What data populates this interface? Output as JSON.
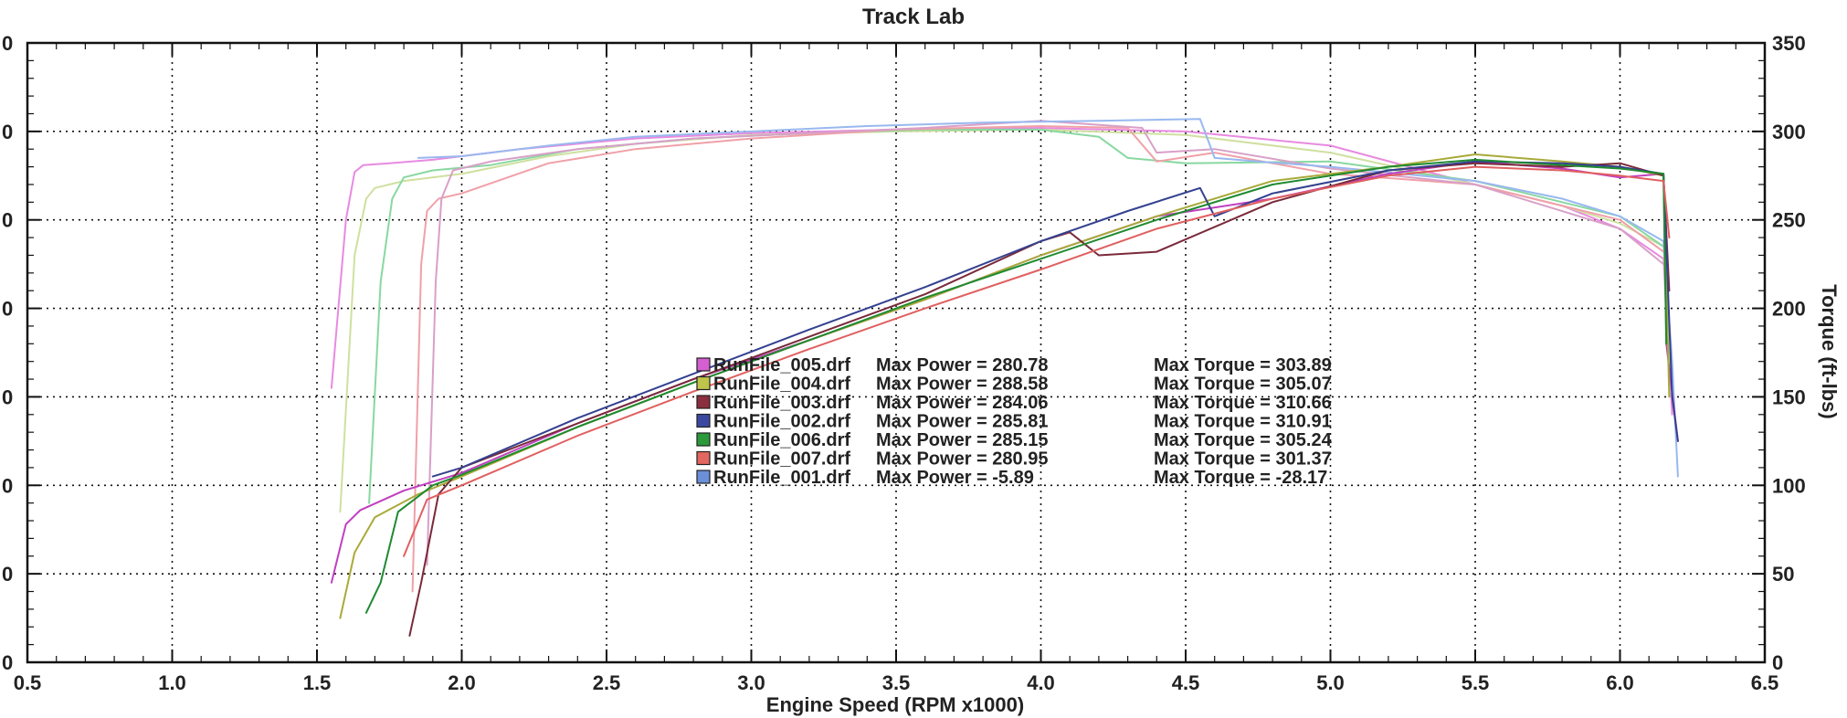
{
  "chart_data": {
    "type": "line",
    "title": "Track Lab",
    "xlabel": "Engine Speed (RPM x1000)",
    "ylabel_right": "Torque (ft-lbs)",
    "xlim": [
      0.5,
      6.5
    ],
    "ylim_right": [
      0,
      350
    ],
    "x_ticks": [
      "0.5",
      "1.0",
      "1.5",
      "2.0",
      "2.5",
      "3.0",
      "3.5",
      "4.0",
      "4.5",
      "5.0",
      "5.5",
      "6.0",
      "6.5"
    ],
    "y_ticks_right": [
      "0",
      "50",
      "100",
      "150",
      "200",
      "250",
      "300",
      "350"
    ],
    "y_ticks_left_visible": [
      "0",
      "0",
      "0",
      "0",
      "0",
      "0",
      "0",
      "0"
    ],
    "grid": true,
    "legend_position": "center",
    "legend": [
      {
        "file": "RunFile_005.drf",
        "power_label": "Max Power = 280.78",
        "torque_label": "Max Torque = 303.89",
        "color": "#d45fd0"
      },
      {
        "file": "RunFile_004.drf",
        "power_label": "Max Power = 288.58",
        "torque_label": "Max Torque = 305.07",
        "color": "#bfc44a"
      },
      {
        "file": "RunFile_003.drf",
        "power_label": "Max Power = 284.06",
        "torque_label": "Max Torque = 310.66",
        "color": "#8a2f3f"
      },
      {
        "file": "RunFile_002.drf",
        "power_label": "Max Power = 285.81",
        "torque_label": "Max Torque = 310.91",
        "color": "#3b4aa0"
      },
      {
        "file": "RunFile_006.drf",
        "power_label": "Max Power = 285.15",
        "torque_label": "Max Torque = 305.24",
        "color": "#2a9a3a"
      },
      {
        "file": "RunFile_007.drf",
        "power_label": "Max Power = 280.95",
        "torque_label": "Max Torque = 301.37",
        "color": "#e2675e"
      },
      {
        "file": "RunFile_001.drf",
        "power_label": "Max Power = -5.89",
        "torque_label": "Max Torque = -28.17",
        "color": "#6b8fd8"
      }
    ],
    "series": [
      {
        "kind": "torque",
        "color": "#e88ae0",
        "x": [
          1.55,
          1.6,
          1.63,
          1.66,
          1.75,
          1.9,
          2.2,
          2.6,
          3.0,
          3.5,
          4.0,
          4.5,
          5.0,
          5.5,
          5.8,
          6.0,
          6.15,
          6.18
        ],
        "y": [
          155,
          250,
          277,
          281,
          282,
          284,
          290,
          296,
          299,
          301,
          302,
          300,
          292,
          270,
          258,
          245,
          228,
          140
        ]
      },
      {
        "kind": "torque",
        "color": "#cfe0a0",
        "x": [
          1.58,
          1.63,
          1.67,
          1.7,
          1.8,
          2.0,
          2.3,
          2.6,
          3.0,
          3.5,
          4.0,
          4.5,
          5.0,
          5.5,
          5.8,
          6.0,
          6.15,
          6.18
        ],
        "y": [
          85,
          230,
          262,
          268,
          272,
          276,
          286,
          293,
          298,
          300,
          301,
          298,
          288,
          270,
          258,
          248,
          235,
          150
        ]
      },
      {
        "kind": "torque",
        "color": "#88d8a0",
        "x": [
          1.68,
          1.72,
          1.76,
          1.8,
          1.9,
          2.1,
          2.4,
          2.8,
          3.2,
          3.6,
          4.0,
          4.2,
          4.3,
          4.5,
          5.0,
          5.5,
          6.0,
          6.15
        ],
        "y": [
          90,
          215,
          262,
          274,
          278,
          281,
          290,
          296,
          299,
          301,
          301,
          297,
          285,
          282,
          283,
          272,
          252,
          235
        ]
      },
      {
        "kind": "torque",
        "color": "#f0a0a8",
        "x": [
          1.83,
          1.86,
          1.88,
          1.92,
          2.0,
          2.3,
          2.6,
          3.0,
          3.5,
          4.0,
          4.3,
          4.4,
          4.6,
          5.0,
          5.5,
          6.0,
          6.15
        ],
        "y": [
          40,
          225,
          255,
          262,
          265,
          282,
          290,
          296,
          301,
          303,
          302,
          283,
          288,
          276,
          270,
          250,
          232
        ]
      },
      {
        "kind": "torque",
        "color": "#d8a0c8",
        "x": [
          1.88,
          1.91,
          1.93,
          1.97,
          2.1,
          2.4,
          2.8,
          3.2,
          3.6,
          4.0,
          4.35,
          4.4,
          4.6,
          5.0,
          5.5,
          6.0,
          6.15
        ],
        "y": [
          55,
          215,
          262,
          278,
          283,
          290,
          296,
          299,
          302,
          306,
          302,
          288,
          290,
          279,
          270,
          245,
          225
        ]
      },
      {
        "kind": "torque",
        "color": "#99b8ef",
        "x": [
          1.85,
          2.0,
          2.3,
          2.6,
          3.0,
          3.4,
          3.8,
          4.2,
          4.55,
          4.6,
          4.75,
          5.0,
          5.5,
          5.8,
          6.0,
          6.15,
          6.18,
          6.2
        ],
        "y": [
          285,
          286,
          292,
          297,
          300,
          303,
          305,
          306,
          307,
          285,
          283,
          280,
          272,
          262,
          252,
          238,
          170,
          105
        ]
      },
      {
        "kind": "power",
        "color": "#c040c0",
        "x": [
          1.55,
          1.6,
          1.65,
          1.8,
          2.0,
          2.4,
          2.8,
          3.2,
          3.6,
          4.0,
          4.4,
          4.8,
          5.2,
          5.5,
          5.8,
          6.0,
          6.15,
          6.16,
          6.2
        ],
        "y": [
          45,
          78,
          86,
          97,
          107,
          135,
          160,
          182,
          205,
          230,
          252,
          262,
          276,
          283,
          279,
          274,
          276,
          180,
          125
        ]
      },
      {
        "kind": "power",
        "color": "#a8aa38",
        "x": [
          1.58,
          1.63,
          1.7,
          1.85,
          2.0,
          2.4,
          2.8,
          3.2,
          3.6,
          4.0,
          4.4,
          4.8,
          5.2,
          5.5,
          5.8,
          6.0,
          6.15,
          6.17
        ],
        "y": [
          25,
          62,
          82,
          95,
          105,
          133,
          158,
          182,
          205,
          230,
          252,
          272,
          280,
          287,
          283,
          280,
          275,
          150
        ]
      },
      {
        "kind": "power",
        "color": "#7a2a3a",
        "x": [
          1.82,
          1.86,
          1.92,
          2.0,
          2.4,
          2.8,
          3.2,
          3.6,
          4.0,
          4.1,
          4.2,
          4.4,
          4.8,
          5.2,
          5.5,
          5.8,
          6.0,
          6.15,
          6.17
        ],
        "y": [
          15,
          45,
          95,
          110,
          135,
          160,
          184,
          208,
          238,
          243,
          230,
          232,
          260,
          278,
          282,
          280,
          282,
          275,
          210
        ]
      },
      {
        "kind": "power",
        "color": "#34418f",
        "x": [
          1.9,
          2.0,
          2.4,
          2.8,
          3.2,
          3.6,
          4.0,
          4.3,
          4.55,
          4.6,
          4.8,
          5.2,
          5.5,
          5.8,
          6.0,
          6.15,
          6.18,
          6.2
        ],
        "y": [
          105,
          110,
          138,
          163,
          188,
          212,
          238,
          255,
          268,
          252,
          265,
          278,
          283,
          282,
          280,
          276,
          150,
          125
        ]
      },
      {
        "kind": "power",
        "color": "#1f8a30",
        "x": [
          1.67,
          1.72,
          1.78,
          1.9,
          2.0,
          2.4,
          2.8,
          3.2,
          3.6,
          4.0,
          4.4,
          4.8,
          5.2,
          5.5,
          5.8,
          6.0,
          6.15,
          6.16
        ],
        "y": [
          28,
          45,
          85,
          100,
          106,
          133,
          158,
          182,
          206,
          228,
          250,
          270,
          280,
          284,
          281,
          279,
          276,
          180
        ]
      },
      {
        "kind": "power",
        "color": "#e06060",
        "x": [
          1.8,
          1.88,
          2.0,
          2.4,
          2.8,
          3.2,
          3.6,
          4.0,
          4.4,
          4.8,
          5.2,
          5.5,
          5.8,
          6.0,
          6.15,
          6.17
        ],
        "y": [
          60,
          92,
          100,
          128,
          153,
          177,
          200,
          222,
          245,
          262,
          275,
          280,
          278,
          275,
          272,
          240
        ]
      }
    ]
  }
}
